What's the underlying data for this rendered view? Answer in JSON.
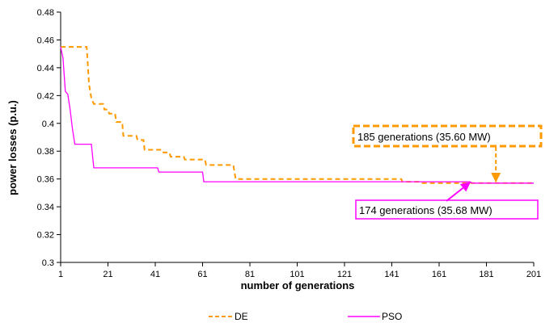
{
  "chart_data": {
    "type": "line",
    "title": "",
    "xlabel": "number of generations",
    "ylabel": "power losses (p.u.)",
    "xlim": [
      1,
      201
    ],
    "ylim": [
      0.3,
      0.48
    ],
    "xticks": [
      1,
      21,
      41,
      61,
      81,
      101,
      121,
      141,
      161,
      181,
      201
    ],
    "yticks": [
      0.3,
      0.32,
      0.34,
      0.36,
      0.38,
      0.4,
      0.42,
      0.44,
      0.46,
      0.48
    ],
    "ytick_labels": [
      "0.3",
      "0.32",
      "0.34",
      "0.36",
      "0.38",
      "0.4",
      "0.42",
      "0.44",
      "0.46",
      "0.48"
    ],
    "grid": false,
    "legend_position": "bottom",
    "series": [
      {
        "name": "DE",
        "color": "#ff9900",
        "style": "dashed",
        "points": [
          [
            1,
            0.455
          ],
          [
            12,
            0.455
          ],
          [
            12.5,
            0.442
          ],
          [
            13,
            0.428
          ],
          [
            14,
            0.418
          ],
          [
            15,
            0.414
          ],
          [
            19,
            0.414
          ],
          [
            19.5,
            0.41
          ],
          [
            21,
            0.41
          ],
          [
            21.5,
            0.407
          ],
          [
            24,
            0.407
          ],
          [
            24.5,
            0.401
          ],
          [
            27,
            0.401
          ],
          [
            27.5,
            0.391
          ],
          [
            33,
            0.391
          ],
          [
            33.5,
            0.388
          ],
          [
            36,
            0.388
          ],
          [
            36.5,
            0.381
          ],
          [
            44,
            0.381
          ],
          [
            44.5,
            0.379
          ],
          [
            47,
            0.379
          ],
          [
            47.5,
            0.376
          ],
          [
            53,
            0.376
          ],
          [
            53.5,
            0.374
          ],
          [
            62,
            0.374
          ],
          [
            62.5,
            0.37
          ],
          [
            74,
            0.37
          ],
          [
            75,
            0.36
          ],
          [
            145,
            0.36
          ],
          [
            145.5,
            0.358
          ],
          [
            153,
            0.358
          ],
          [
            153.5,
            0.357
          ],
          [
            185,
            0.357
          ],
          [
            201,
            0.357
          ]
        ]
      },
      {
        "name": "PSO",
        "color": "#ff00ff",
        "style": "solid",
        "points": [
          [
            1,
            0.455
          ],
          [
            2,
            0.447
          ],
          [
            3,
            0.423
          ],
          [
            4,
            0.421
          ],
          [
            5,
            0.41
          ],
          [
            6,
            0.396
          ],
          [
            7,
            0.385
          ],
          [
            14,
            0.385
          ],
          [
            15,
            0.368
          ],
          [
            42,
            0.368
          ],
          [
            42.5,
            0.365
          ],
          [
            61,
            0.365
          ],
          [
            61.5,
            0.358
          ],
          [
            174,
            0.358
          ],
          [
            175,
            0.357
          ],
          [
            201,
            0.357
          ]
        ]
      }
    ],
    "annotations": [
      {
        "text": "185 generations (35.60 MW)",
        "series": "DE",
        "x": 185,
        "y": 0.357,
        "border_color": "#ff9900",
        "border_style": "dashed",
        "arrow_color": "#ff9900"
      },
      {
        "text": "174 generations (35.68 MW)",
        "series": "PSO",
        "x": 174,
        "y": 0.358,
        "border_color": "#ff00ff",
        "border_style": "solid",
        "arrow_color": "#ff00ff"
      }
    ]
  }
}
